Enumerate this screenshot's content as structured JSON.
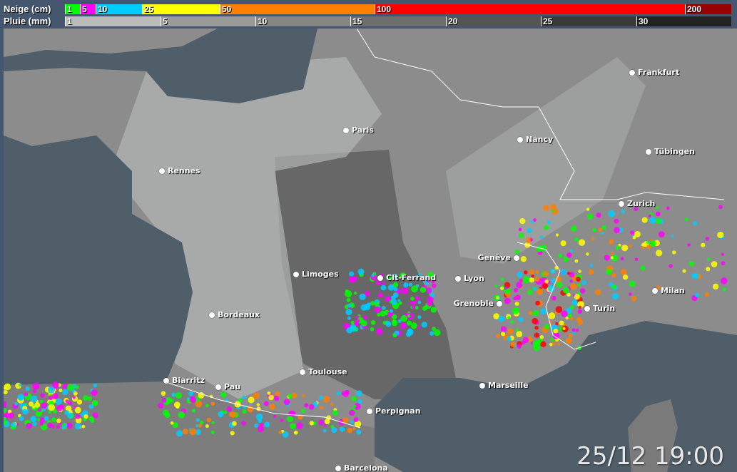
{
  "legend": {
    "snow": {
      "label": "Neige (cm)",
      "steps": [
        {
          "value": "1",
          "color": "#00ff00"
        },
        {
          "value": "5",
          "color": "#ff00ff"
        },
        {
          "value": "10",
          "color": "#00ccff"
        },
        {
          "value": "25",
          "color": "#ffff00"
        },
        {
          "value": "50",
          "color": "#ff7f00"
        },
        {
          "value": "100",
          "color": "#ff0000"
        },
        {
          "value": "200",
          "color": "#990000"
        }
      ]
    },
    "rain": {
      "label": "Pluie (mm)",
      "steps": [
        {
          "value": "1",
          "color": "#bbbbbb"
        },
        {
          "value": "5",
          "color": "#9a9a9a"
        },
        {
          "value": "10",
          "color": "#858585"
        },
        {
          "value": "15",
          "color": "#6e6e6e"
        },
        {
          "value": "20",
          "color": "#555555"
        },
        {
          "value": "25",
          "color": "#3a3a3a"
        },
        {
          "value": "30",
          "color": "#222222"
        }
      ]
    }
  },
  "cities": [
    "Frankfurt",
    "Paris",
    "Nancy",
    "Tübingen",
    "Rennes",
    "Zurich",
    "Genève",
    "Limoges",
    "Clt-Ferrand",
    "Lyon",
    "Milan",
    "Grenoble",
    "Turin",
    "Bordeaux",
    "Toulouse",
    "Biarritz",
    "Pau",
    "Marseille",
    "Perpignan",
    "Barcelona"
  ],
  "timestamp": "25/12 19:00"
}
